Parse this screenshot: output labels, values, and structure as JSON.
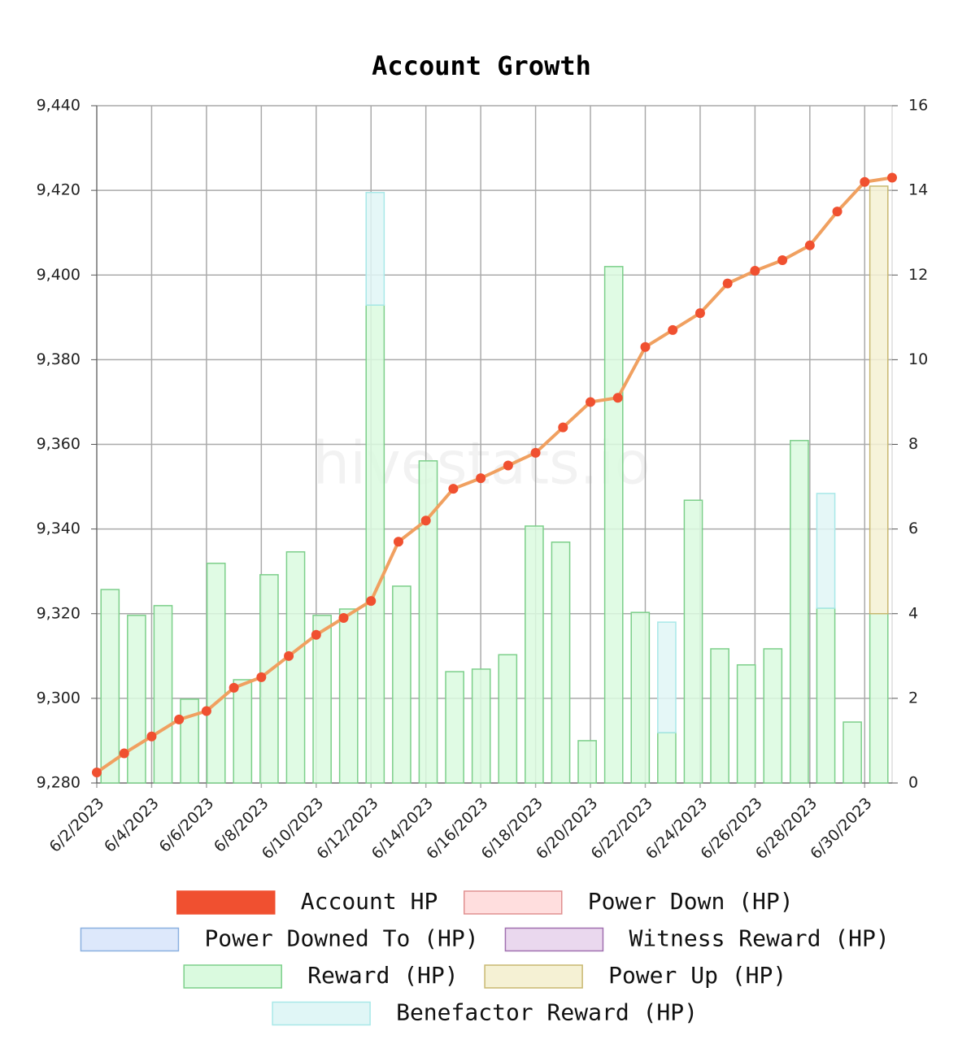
{
  "chart_data": {
    "type": "bar-line",
    "title": "Account Growth",
    "watermark": "hivestats.io",
    "categories": [
      "6/2/2023",
      null,
      "6/4/2023",
      null,
      "6/6/2023",
      null,
      "6/8/2023",
      null,
      "6/10/2023",
      null,
      "6/12/2023",
      null,
      "6/14/2023",
      null,
      "6/16/2023",
      null,
      "6/18/2023",
      null,
      "6/20/2023",
      null,
      "6/22/2023",
      null,
      "6/24/2023",
      null,
      "6/26/2023",
      null,
      "6/28/2023",
      null,
      "6/30/2023",
      null
    ],
    "ylim": [
      9280,
      9440
    ],
    "yticks": [
      {
        "value": 9280,
        "label": "9,280"
      },
      {
        "value": 9300,
        "label": "9,300"
      },
      {
        "value": 9320,
        "label": "9,320"
      },
      {
        "value": 9340,
        "label": "9,340"
      },
      {
        "value": 9360,
        "label": "9,360"
      },
      {
        "value": 9380,
        "label": "9,380"
      },
      {
        "value": 9400,
        "label": "9,400"
      },
      {
        "value": 9420,
        "label": "9,420"
      },
      {
        "value": 9440,
        "label": "9,440"
      }
    ],
    "y2lim": [
      0,
      16
    ],
    "y2ticks": [
      0,
      2,
      4,
      6,
      8,
      10,
      12,
      14,
      16
    ],
    "grid": true,
    "series": [
      {
        "name": "Account HP",
        "type": "line",
        "axis": "y",
        "color": "#f05030",
        "line_color": "#f0a060",
        "values": [
          9282.5,
          9287,
          9291,
          9295,
          9297,
          9302.5,
          9305,
          9310,
          9315,
          9319,
          9323,
          9337,
          9342,
          9349.5,
          9352,
          9355,
          9358,
          9364,
          9370,
          9371,
          9383,
          9387,
          9391,
          9398,
          9401,
          9403.5,
          9407,
          9415,
          9422,
          9423
        ]
      },
      {
        "name": "Power Down (HP)",
        "type": "bar",
        "axis": "y2",
        "color": "#ffdede",
        "stroke": "#e09090",
        "values": [
          0,
          0,
          0,
          0,
          0,
          0,
          0,
          0,
          0,
          0,
          0,
          0,
          0,
          0,
          0,
          0,
          0,
          0,
          0,
          0,
          0,
          0,
          0,
          0,
          0,
          0,
          0,
          0,
          0,
          0
        ]
      },
      {
        "name": "Power Downed To (HP)",
        "type": "bar",
        "axis": "y2",
        "color": "#dde8fb",
        "stroke": "#8ab0e0",
        "values": [
          0,
          0,
          0,
          0,
          0,
          0,
          0,
          0,
          0,
          0,
          0,
          0,
          0,
          0,
          0,
          0,
          0,
          0,
          0,
          0,
          0,
          0,
          0,
          0,
          0,
          0,
          0,
          0,
          0,
          0
        ]
      },
      {
        "name": "Witness Reward (HP)",
        "type": "bar",
        "axis": "y2",
        "color": "#ead8ee",
        "stroke": "#a070b0",
        "values": [
          0,
          0,
          0,
          0,
          0,
          0,
          0,
          0,
          0,
          0,
          0,
          0,
          0,
          0,
          0,
          0,
          0,
          0,
          0,
          0,
          0,
          0,
          0,
          0,
          0,
          0,
          0,
          0,
          0,
          0
        ]
      },
      {
        "name": "Reward (HP)",
        "type": "bar",
        "axis": "y2",
        "color": "#dafadf",
        "stroke": "#7ccf8a",
        "values": [
          4.57,
          3.96,
          4.19,
          1.98,
          5.19,
          2.44,
          4.92,
          5.46,
          3.96,
          4.11,
          11.29,
          4.65,
          7.61,
          2.63,
          2.69,
          3.03,
          6.07,
          5.69,
          1.0,
          12.2,
          4.03,
          1.19,
          6.68,
          3.17,
          2.79,
          3.17,
          8.09,
          4.13,
          1.44,
          4.0
        ]
      },
      {
        "name": "Power Up (HP)",
        "type": "bar",
        "axis": "y2",
        "color": "#f5f1d4",
        "stroke": "#c8b870",
        "values": [
          0,
          0,
          0,
          0,
          0,
          0,
          0,
          0,
          0,
          0,
          0,
          0,
          0,
          0,
          0,
          0,
          0,
          0,
          0,
          0,
          0,
          0,
          0,
          0,
          0,
          0,
          0,
          0,
          0,
          10.1
        ]
      },
      {
        "name": "Benefactor Reward (HP)",
        "type": "bar",
        "axis": "y2",
        "color": "#e0f6f6",
        "stroke": "#a8e8e8",
        "values": [
          0,
          0,
          0,
          0,
          0,
          0,
          0,
          0,
          0,
          0,
          2.66,
          0,
          0,
          0,
          0,
          0,
          0,
          0,
          0,
          0,
          0,
          2.61,
          0,
          0,
          0,
          0,
          0,
          2.71,
          0,
          0
        ]
      }
    ]
  }
}
